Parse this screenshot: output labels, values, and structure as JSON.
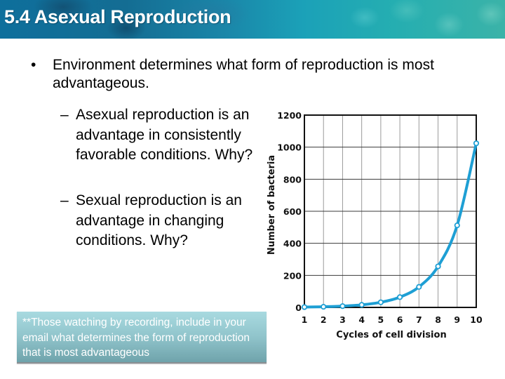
{
  "header": {
    "title": "5.4 Asexual Reproduction"
  },
  "content": {
    "bullet_symbol": "•",
    "main_bullet": "Environment determines what form of reproduction is most advantageous.",
    "dash_symbol": "–",
    "sub_bullets": [
      "Asexual reproduction is an advantage in consistently favorable conditions.  Why?",
      "Sexual reproduction is an advantage in changing conditions. Why?"
    ],
    "note": "**Those watching by recording, include in your email what determines the form of reproduction that is most advantageous"
  },
  "colors": {
    "line": "#1e9fd4",
    "grid_major": "#3a3a3a",
    "grid_minor": "#9a9a9a",
    "axis": "#111111"
  },
  "chart_data": {
    "type": "line",
    "title": "",
    "xlabel": "Cycles of cell division",
    "ylabel": "Number of bacteria",
    "x": [
      1,
      2,
      3,
      4,
      5,
      6,
      7,
      8,
      9,
      10
    ],
    "series": [
      {
        "name": "Number of bacteria",
        "values": [
          2,
          4,
          8,
          16,
          32,
          64,
          128,
          256,
          512,
          1024
        ]
      }
    ],
    "xticks": [
      "1",
      "2",
      "3",
      "4",
      "5",
      "6",
      "7",
      "8",
      "9",
      "10"
    ],
    "yticks": [
      "0",
      "200",
      "400",
      "600",
      "800",
      "1000",
      "1200"
    ],
    "xlim": [
      1,
      10
    ],
    "ylim": [
      0,
      1200
    ],
    "grid": true,
    "legend": "none",
    "markers": "open-circle"
  }
}
